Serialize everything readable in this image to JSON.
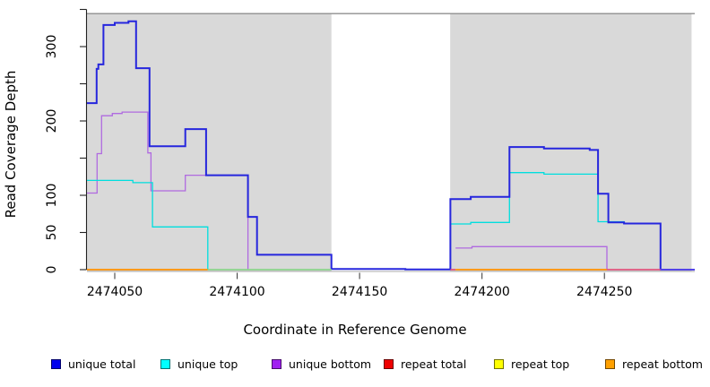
{
  "figure": {
    "x_axis_title": "Coordinate in Reference Genome",
    "y_axis_title": "Read Coverage Depth"
  },
  "chart_data": {
    "type": "line",
    "subtype": "step-coverage",
    "title": "",
    "xlabel": "Coordinate in Reference Genome",
    "ylabel": "Read Coverage Depth",
    "xlim": [
      2474038.65,
      2474286.9
    ],
    "ylim": [
      0,
      344
    ],
    "grid": false,
    "legend_position": "bottom",
    "x_ticks": [
      {
        "value": 2474050,
        "label": "2474050"
      },
      {
        "value": 2474100,
        "label": "2474100"
      },
      {
        "value": 2474150,
        "label": "2474150"
      },
      {
        "value": 2474200,
        "label": "2474200"
      },
      {
        "value": 2474250,
        "label": "2474250"
      }
    ],
    "y_ticks": [
      {
        "value": 0,
        "label": "0"
      },
      {
        "value": 50,
        "label": "50"
      },
      {
        "value": 100,
        "label": "100"
      },
      {
        "value": 150,
        "label": ""
      },
      {
        "value": 200,
        "label": "200"
      },
      {
        "value": 250,
        "label": ""
      },
      {
        "value": 300,
        "label": "300"
      },
      {
        "value": 350,
        "label": ""
      }
    ],
    "shaded_regions": [
      {
        "from": 2474038.65,
        "to": 2474138.5,
        "fill": "#d9d9d9"
      },
      {
        "from": 2474187.0,
        "to": 2474285.6,
        "fill": "#d9d9d9"
      }
    ],
    "series": [
      {
        "name": "unique total",
        "color": "#2626dd",
        "width": 2,
        "segments": [
          [
            [
              2474038.65,
              224
            ],
            [
              2474042.6,
              270
            ],
            [
              2474043.3,
              276
            ],
            [
              2474045.4,
              329
            ],
            [
              2474050,
              332
            ],
            [
              2474055.6,
              334
            ],
            [
              2474058.7,
              271
            ],
            [
              2474064.2,
              166
            ],
            [
              2474078.8,
              189
            ],
            [
              2474087.3,
              127
            ],
            [
              2474104.4,
              71
            ],
            [
              2474108.1,
              20
            ],
            [
              2474138.5,
              1
            ],
            [
              2474168.7,
              0.4
            ],
            [
              2474187.1,
              95
            ],
            [
              2474195.4,
              98
            ],
            [
              2474211.2,
              165
            ],
            [
              2474225.3,
              163
            ],
            [
              2474244,
              161
            ],
            [
              2474247.4,
              102
            ],
            [
              2474251.6,
              63.5
            ],
            [
              2474258,
              62
            ],
            [
              2474272.9,
              0
            ],
            [
              2474286.9,
              0
            ]
          ]
        ]
      },
      {
        "name": "unique top",
        "color": "#00dede",
        "width": 1.3,
        "segments": [
          [
            [
              2474038.65,
              120
            ],
            [
              2474057.4,
              117
            ],
            [
              2474065.4,
              57.5
            ],
            [
              2474088,
              0
            ]
          ],
          [
            [
              2474187.1,
              61.5
            ],
            [
              2474195.4,
              63.5
            ],
            [
              2474211.2,
              130.5
            ],
            [
              2474225.3,
              128.5
            ],
            [
              2474247.4,
              64.5
            ],
            [
              2474258,
              62
            ],
            [
              2474272.9,
              0
            ]
          ]
        ]
      },
      {
        "name": "unique bottom",
        "color": "#b06ae0",
        "width": 1.3,
        "segments": [
          [
            [
              2474038.65,
              103
            ],
            [
              2474042.8,
              156
            ],
            [
              2474044.6,
              207
            ],
            [
              2474049,
              210
            ],
            [
              2474053,
              212
            ],
            [
              2474063.5,
              157
            ],
            [
              2474064.8,
              106
            ],
            [
              2474078.8,
              127
            ],
            [
              2474104.4,
              0
            ]
          ],
          [
            [
              2474189.2,
              29
            ],
            [
              2474195.9,
              31
            ],
            [
              2474251,
              0
            ]
          ]
        ]
      },
      {
        "name": "repeat total",
        "color": "#ee0000",
        "width": 1.3,
        "segments": []
      },
      {
        "name": "repeat top",
        "color": "#ffff00",
        "width": 1.3,
        "segments": []
      },
      {
        "name": "repeat bottom",
        "color": "#ff9100",
        "width": 1.3,
        "segments": []
      }
    ],
    "baseline_segments": [
      {
        "series": "repeat bottom",
        "value": 0,
        "from": 2474038.65,
        "to": 2474088,
        "color": "#ff9100"
      },
      {
        "series": "unique top + repeat top overlap",
        "value": 0,
        "from": 2474088,
        "to": 2474138.5,
        "color": "#8bd48b"
      },
      {
        "series": "repeat total",
        "value": 0,
        "from": 2474187.1,
        "to": 2474189.2,
        "color": "#e0557f"
      },
      {
        "series": "repeat bottom",
        "value": 0,
        "from": 2474189.2,
        "to": 2474251,
        "color": "#ff9100"
      },
      {
        "series": "repeat total",
        "value": 0,
        "from": 2474251,
        "to": 2474272.9,
        "color": "#e0557f"
      },
      {
        "series": "unique total + unique bottom",
        "value": 0,
        "from": 2474272.9,
        "to": 2474286.9,
        "color": "#5b49e8"
      }
    ],
    "legend": [
      {
        "label": "unique total",
        "color": "#0000ee"
      },
      {
        "label": "unique top",
        "color": "#00ffff"
      },
      {
        "label": "unique bottom",
        "color": "#a020f0"
      },
      {
        "label": "repeat total",
        "color": "#ee0000"
      },
      {
        "label": "repeat top",
        "color": "#ffff00"
      },
      {
        "label": "repeat bottom",
        "color": "#ffa000"
      }
    ]
  }
}
